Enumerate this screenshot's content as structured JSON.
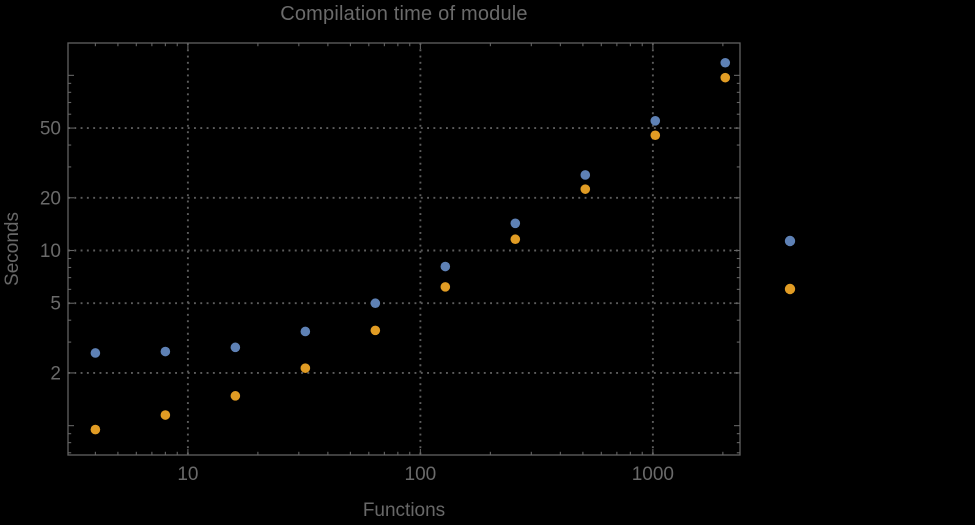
{
  "chart_data": {
    "type": "scatter",
    "title": "Compilation time of module",
    "xlabel": "Functions",
    "ylabel": "Seconds",
    "x_scale": "log",
    "y_scale": "log",
    "xlim": [
      3.05,
      2370
    ],
    "ylim": [
      0.68,
      153
    ],
    "grid": "dotted gridlines at labeled ticks only",
    "x_gridlines": [
      10,
      100,
      1000
    ],
    "y_gridlines": [
      2,
      5,
      10,
      20,
      50
    ],
    "x_ticks_labeled": [
      10,
      100,
      1000
    ],
    "x_tick_labels": [
      "10",
      "100",
      "1000"
    ],
    "x_minor_ticks": [
      4,
      5,
      6,
      7,
      8,
      9,
      20,
      30,
      40,
      50,
      60,
      70,
      80,
      90,
      200,
      300,
      400,
      500,
      600,
      700,
      800,
      900,
      2000
    ],
    "y_ticks_labeled": [
      2,
      5,
      10,
      20,
      50
    ],
    "y_tick_labels": [
      "2",
      "5",
      "10",
      "20",
      "50"
    ],
    "y_major_unlabeled_ticks": [
      1,
      100
    ],
    "y_minor_ticks": [
      0.7,
      0.8,
      0.9,
      3,
      4,
      6,
      7,
      8,
      9,
      30,
      40,
      60,
      70,
      80,
      90
    ],
    "x": [
      4,
      8,
      16,
      32,
      64,
      128,
      256,
      512,
      1024,
      2048
    ],
    "series": [
      {
        "name": "series-1 (label not visible)",
        "color": "#5e81b5",
        "values": [
          2.6,
          2.65,
          2.8,
          3.45,
          5.0,
          8.1,
          14.3,
          27,
          55,
          118
        ]
      },
      {
        "name": "series-2 (label not visible)",
        "color": "#e19c24",
        "values": [
          0.95,
          1.15,
          1.48,
          2.13,
          3.5,
          6.2,
          11.6,
          22.4,
          45.5,
          97
        ]
      }
    ],
    "legend": {
      "position": "right of plot, vertically centered",
      "labels_visible": false,
      "marker_colors": [
        "#5e81b5",
        "#e19c24"
      ]
    }
  },
  "style": {
    "background": "#000000",
    "frame_color": "#616161",
    "grid_color": "#5d5d5d",
    "tick_color": "#646464",
    "label_color": "#6a6a6a",
    "title_color": "#6b6b6b"
  }
}
